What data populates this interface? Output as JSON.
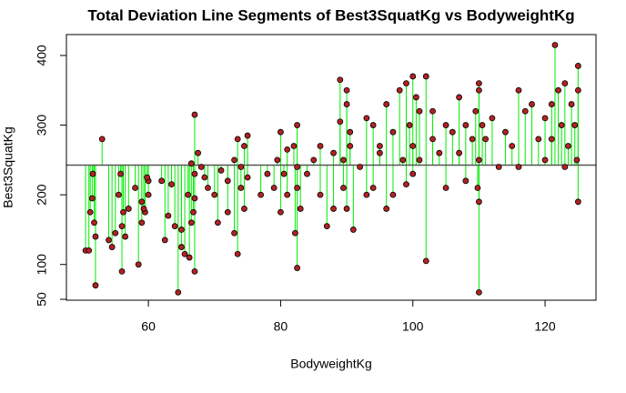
{
  "chart_data": {
    "type": "scatter",
    "title": "Total Deviation Line Segments of Best3SquatKg vs BodyweightKg",
    "x_label": "BodyweightKg",
    "y_label": "Best3SquatKg",
    "xlim": [
      47.6,
      127.7
    ],
    "ylim": [
      48.7,
      430
    ],
    "xticks": [
      60,
      80,
      100,
      120
    ],
    "yticks": [
      50,
      100,
      200,
      300,
      400
    ],
    "hline": 242.6,
    "hline_color": "#555555",
    "segment_color": "#00ee00",
    "color": "#b22222",
    "x": [
      50.5,
      51,
      51.5,
      51.8,
      52,
      52,
      51.2,
      51.6,
      53,
      54,
      54.5,
      55,
      55.5,
      56,
      56,
      55.8,
      56.2,
      56.5,
      57,
      58,
      58.5,
      59,
      59,
      59.5,
      60,
      60,
      59.8,
      59.3,
      62,
      62.5,
      63,
      63.5,
      64,
      64.5,
      65,
      65,
      65.5,
      66,
      66.5,
      66.5,
      67,
      67,
      67,
      67.5,
      67,
      66.8,
      66.2,
      68,
      68.5,
      69,
      70,
      70.5,
      71,
      72,
      72,
      73,
      73.5,
      73.5,
      74,
      74,
      74.5,
      75,
      75,
      74.5,
      73,
      77,
      78,
      79,
      79.5,
      80,
      80,
      80.5,
      81,
      81,
      82,
      82.5,
      82.5,
      82.5,
      82.5,
      83,
      82.2,
      84,
      85,
      86,
      86,
      87,
      88,
      88,
      89,
      89,
      89.5,
      90,
      90,
      90,
      90.5,
      90.5,
      91,
      89.5,
      92,
      93,
      93,
      94,
      94,
      95,
      95,
      96,
      96,
      97,
      97,
      98,
      98.5,
      99,
      99,
      99.5,
      100,
      100,
      100,
      100.5,
      101,
      101,
      102,
      102,
      103,
      103,
      104,
      105,
      105,
      106,
      107,
      107,
      108,
      108,
      109,
      109.5,
      110,
      110,
      110,
      110,
      110,
      110.5,
      111,
      109.8,
      112,
      113,
      114,
      115,
      116,
      116,
      117,
      118,
      119,
      120,
      120,
      121.5,
      121,
      121,
      122,
      122.5,
      123,
      123,
      123.5,
      124,
      124.5,
      125,
      125,
      125,
      124.8
    ],
    "y": [
      120,
      120,
      195,
      160,
      70,
      140,
      175,
      230,
      280,
      135,
      125,
      145,
      200,
      90,
      155,
      230,
      175,
      140,
      180,
      210,
      100,
      190,
      160,
      175,
      200,
      220,
      225,
      180,
      220,
      135,
      170,
      215,
      155,
      60,
      125,
      150,
      115,
      200,
      160,
      245,
      315,
      90,
      230,
      260,
      195,
      175,
      110,
      240,
      225,
      210,
      200,
      160,
      235,
      175,
      220,
      250,
      280,
      115,
      210,
      240,
      270,
      285,
      225,
      180,
      145,
      200,
      230,
      210,
      250,
      175,
      290,
      230,
      265,
      200,
      270,
      300,
      95,
      210,
      240,
      180,
      145,
      230,
      250,
      270,
      200,
      155,
      260,
      180,
      305,
      365,
      250,
      350,
      180,
      330,
      290,
      270,
      150,
      210,
      240,
      310,
      200,
      300,
      210,
      270,
      260,
      180,
      330,
      290,
      200,
      350,
      250,
      360,
      215,
      300,
      370,
      270,
      230,
      340,
      250,
      320,
      105,
      370,
      320,
      280,
      260,
      300,
      210,
      290,
      340,
      260,
      220,
      300,
      280,
      320,
      360,
      60,
      190,
      250,
      350,
      300,
      280,
      210,
      310,
      240,
      290,
      270,
      350,
      240,
      320,
      330,
      280,
      310,
      250,
      415,
      330,
      280,
      350,
      300,
      360,
      240,
      270,
      330,
      300,
      385,
      190,
      350,
      250
    ]
  }
}
